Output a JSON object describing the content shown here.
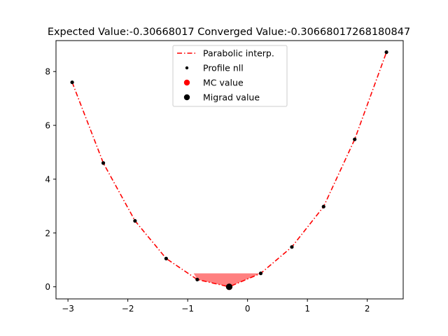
{
  "chart_data": {
    "type": "line",
    "title": "Expected Value:-0.30668017 Converged Value:-0.30668017268180847",
    "xlabel": "",
    "ylabel": "",
    "xlim": [
      -3.2,
      2.6
    ],
    "ylim": [
      -0.45,
      9.15
    ],
    "xticks": [
      {
        "value": -3,
        "label": "−3"
      },
      {
        "value": -2,
        "label": "−2"
      },
      {
        "value": -1,
        "label": "−1"
      },
      {
        "value": 0,
        "label": "0"
      },
      {
        "value": 1,
        "label": "1"
      },
      {
        "value": 2,
        "label": "2"
      }
    ],
    "yticks": [
      {
        "value": 0,
        "label": "0"
      },
      {
        "value": 2,
        "label": "2"
      },
      {
        "value": 4,
        "label": "4"
      },
      {
        "value": 6,
        "label": "6"
      },
      {
        "value": 8,
        "label": "8"
      }
    ],
    "grid": false,
    "legend_position": "top-center",
    "legend": [
      "Parabolic interp.",
      "Profile nll",
      "MC value",
      "Migrad value"
    ],
    "series": [
      {
        "name": "Parabolic interp.",
        "style": "dash-dot",
        "color": "#ff0000",
        "x": [
          -2.93,
          -2.41,
          -1.88,
          -1.36,
          -0.84,
          -0.3067,
          0.22,
          0.74,
          1.27,
          1.79,
          2.32
        ],
        "y": [
          7.6,
          4.6,
          2.45,
          1.05,
          0.27,
          0.0,
          0.5,
          1.48,
          2.98,
          5.48,
          8.72
        ]
      },
      {
        "name": "Profile nll",
        "marker": "small-dot",
        "color": "#000000",
        "x": [
          -2.93,
          -2.41,
          -1.88,
          -1.36,
          -0.84,
          0.22,
          0.74,
          1.27,
          1.79,
          2.32
        ],
        "y": [
          7.6,
          4.6,
          2.45,
          1.05,
          0.27,
          0.5,
          1.48,
          2.98,
          5.48,
          8.72
        ]
      },
      {
        "name": "MC value",
        "marker": "dot",
        "color": "#ff0000",
        "x": [
          -0.30668017
        ],
        "y": [
          0.0
        ]
      },
      {
        "name": "Migrad value",
        "marker": "dot",
        "color": "#000000",
        "x": [
          -0.30668017268180847
        ],
        "y": [
          0.0
        ]
      }
    ],
    "shaded_region": {
      "color": "#ff8080",
      "level": 0.5,
      "x": [
        -0.9,
        -0.84,
        -0.3067,
        0.22,
        -0.9
      ],
      "y": [
        0.5,
        0.27,
        0.0,
        0.5,
        0.5
      ]
    }
  }
}
